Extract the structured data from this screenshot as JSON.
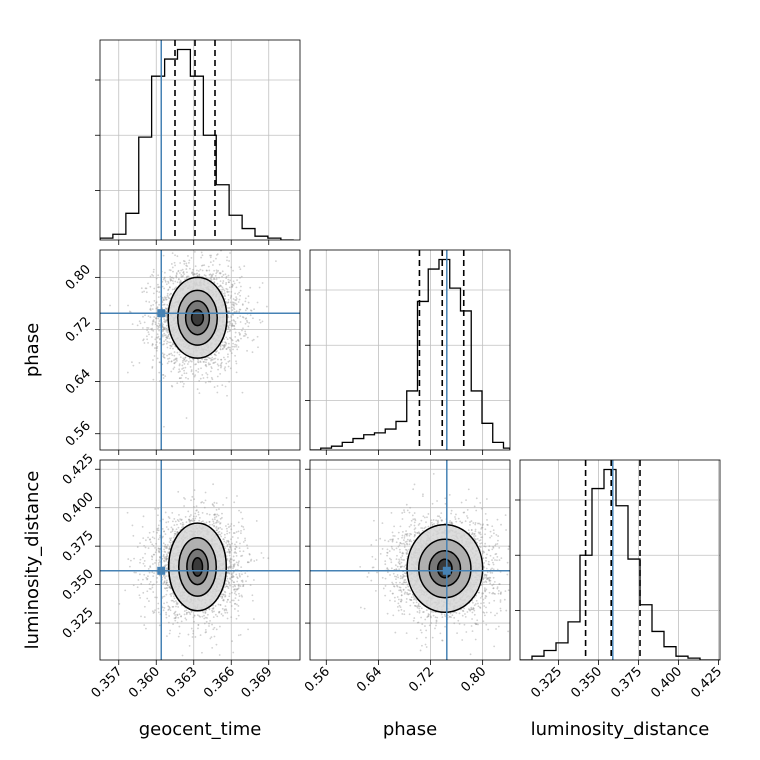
{
  "chart_data": {
    "type": "corner",
    "parameters": [
      "geocent_time",
      "phase",
      "luminosity_distance"
    ],
    "truths": {
      "geocent_time": 0.3604,
      "phase": 0.745,
      "luminosity_distance": 0.359
    },
    "colors": {
      "truth": "#4682b4",
      "grid": "#c0c0c0",
      "hist": "#000000",
      "scatter": "#9a9a9a"
    },
    "grid": true,
    "panels": [
      {
        "id": "hist-geocent_time",
        "kind": "histogram",
        "param": "geocent_time",
        "xlim": [
          0.3555,
          0.3715
        ],
        "bin_edges": [
          0.3555,
          0.35653,
          0.35757,
          0.3586,
          0.35963,
          0.36067,
          0.3617,
          0.36273,
          0.36377,
          0.3648,
          0.36583,
          0.36687,
          0.3679,
          0.36893,
          0.36997,
          0.371
        ],
        "counts": [
          0.01,
          0.03,
          0.14,
          0.54,
          0.86,
          0.95,
          1.0,
          0.86,
          0.55,
          0.29,
          0.13,
          0.06,
          0.02,
          0.01,
          0.0
        ],
        "quantiles": [
          0.3615,
          0.3631,
          0.3647
        ],
        "truth": 0.3604
      },
      {
        "id": "hist-phase",
        "kind": "histogram",
        "param": "phase",
        "xlim": [
          0.535,
          0.842
        ],
        "bin_edges": [
          0.535,
          0.5515,
          0.568,
          0.5845,
          0.601,
          0.6175,
          0.634,
          0.6505,
          0.667,
          0.6835,
          0.7,
          0.7165,
          0.733,
          0.7495,
          0.766,
          0.7825,
          0.799,
          0.8155,
          0.832,
          0.842
        ],
        "counts": [
          0.0,
          0.01,
          0.02,
          0.04,
          0.06,
          0.08,
          0.09,
          0.11,
          0.15,
          0.31,
          0.78,
          0.95,
          1.0,
          0.85,
          0.73,
          0.31,
          0.14,
          0.04,
          0.01
        ],
        "quantiles": [
          0.703,
          0.738,
          0.771
        ],
        "truth": 0.745
      },
      {
        "id": "hist-luminosity_distance",
        "kind": "histogram",
        "param": "luminosity_distance",
        "xlim": [
          0.301,
          0.426
        ],
        "bin_edges": [
          0.301,
          0.3085,
          0.316,
          0.3235,
          0.331,
          0.3385,
          0.346,
          0.3535,
          0.361,
          0.3685,
          0.376,
          0.3835,
          0.391,
          0.3985,
          0.406,
          0.4135,
          0.421,
          0.426
        ],
        "counts": [
          0.0,
          0.02,
          0.05,
          0.09,
          0.2,
          0.55,
          0.9,
          1.0,
          0.81,
          0.53,
          0.29,
          0.15,
          0.07,
          0.02,
          0.01,
          0.0,
          0.0
        ],
        "quantiles": [
          0.342,
          0.358,
          0.376
        ],
        "truth": 0.359
      },
      {
        "id": "2d-geocent_time-phase",
        "kind": "2d",
        "x": "geocent_time",
        "y": "phase",
        "xlim": [
          0.3555,
          0.3715
        ],
        "ylim": [
          0.535,
          0.842
        ],
        "mean": [
          0.3633,
          0.738
        ],
        "std": [
          0.00165,
          0.038
        ],
        "contour_rx_ry": [
          [
            0.00047,
            0.012
          ],
          [
            0.00095,
            0.026
          ],
          [
            0.00158,
            0.042
          ],
          [
            0.00235,
            0.062
          ]
        ],
        "truth": [
          0.3604,
          0.745
        ]
      },
      {
        "id": "2d-geocent_time-luminosity_distance",
        "kind": "2d",
        "x": "geocent_time",
        "y": "luminosity_distance",
        "xlim": [
          0.3555,
          0.3715
        ],
        "ylim": [
          0.301,
          0.431
        ],
        "mean": [
          0.3633,
          0.3615
        ],
        "std": [
          0.00165,
          0.0155
        ],
        "contour_rx_ry": [
          [
            0.0004,
            0.006
          ],
          [
            0.00085,
            0.0115
          ],
          [
            0.0015,
            0.019
          ],
          [
            0.0023,
            0.0285
          ]
        ],
        "truth": [
          0.3604,
          0.359
        ]
      },
      {
        "id": "2d-phase-luminosity_distance",
        "kind": "2d",
        "x": "phase",
        "y": "luminosity_distance",
        "xlim": [
          0.535,
          0.842
        ],
        "ylim": [
          0.301,
          0.431
        ],
        "mean": [
          0.742,
          0.3605
        ],
        "std": [
          0.038,
          0.0155
        ],
        "contour_rx_ry": [
          [
            0.011,
            0.006
          ],
          [
            0.024,
            0.0115
          ],
          [
            0.04,
            0.019
          ],
          [
            0.058,
            0.0285
          ]
        ],
        "truth": [
          0.745,
          0.359
        ]
      }
    ],
    "ticks": {
      "geocent_time": {
        "values": [
          0.357,
          0.36,
          0.363,
          0.366,
          0.369
        ],
        "labels": [
          "0.357",
          "0.360",
          "0.363",
          "0.366",
          "0.369"
        ]
      },
      "phase": {
        "values": [
          0.56,
          0.64,
          0.72,
          0.8
        ],
        "labels": [
          "0.56",
          "0.64",
          "0.72",
          "0.80"
        ]
      },
      "luminosity_distance": {
        "values": [
          0.325,
          0.35,
          0.375,
          0.4,
          0.425
        ],
        "labels": [
          "0.325",
          "0.350",
          "0.375",
          "0.400",
          "0.425"
        ]
      },
      "luminosity_distance_y": {
        "values": [
          0.325,
          0.35,
          0.375,
          0.4,
          0.425
        ],
        "labels": [
          "0.325",
          "0.350",
          "0.375",
          "0.400",
          "0.425"
        ]
      },
      "phase_y": {
        "values": [
          0.56,
          0.64,
          0.72,
          0.8
        ],
        "labels": [
          "0.56",
          "0.64",
          "0.72",
          "0.80"
        ]
      }
    },
    "xlabels": [
      "geocent_time",
      "phase",
      "luminosity_distance"
    ],
    "ylabels": [
      "phase",
      "luminosity_distance"
    ]
  }
}
